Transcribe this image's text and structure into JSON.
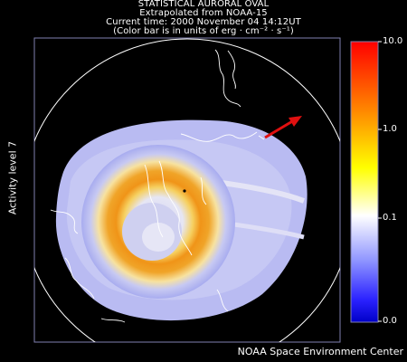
{
  "title": {
    "line1": "STATISTICAL AURORAL OVAL",
    "line2": "Extrapolated from NOAA-15",
    "line3": "Current time: 2000 November 04 14:12UT",
    "line4": "(Color bar is in units of erg · cm⁻² · s⁻¹)"
  },
  "activity_label": "Activity level 7",
  "footer": "NOAA Space Environment Center",
  "colorbar": {
    "ticks": [
      {
        "label": "10.0",
        "value": 10.0
      },
      {
        "label": "1.0",
        "value": 1.0
      },
      {
        "label": "0.1",
        "value": 0.1
      },
      {
        "label": "0.0",
        "value": 0.0
      }
    ],
    "colors": [
      "#ff0000",
      "#ff8a00",
      "#ffff00",
      "#ffffff",
      "#8f95ff",
      "#2b22ff",
      "#0000c8"
    ]
  },
  "map": {
    "sun_arrow_color": "#e01010",
    "oval_colors": {
      "outer": "#b7b9f5",
      "mid": "#f3a020",
      "core": "#e07800",
      "pole": "#c9c9f0"
    }
  }
}
